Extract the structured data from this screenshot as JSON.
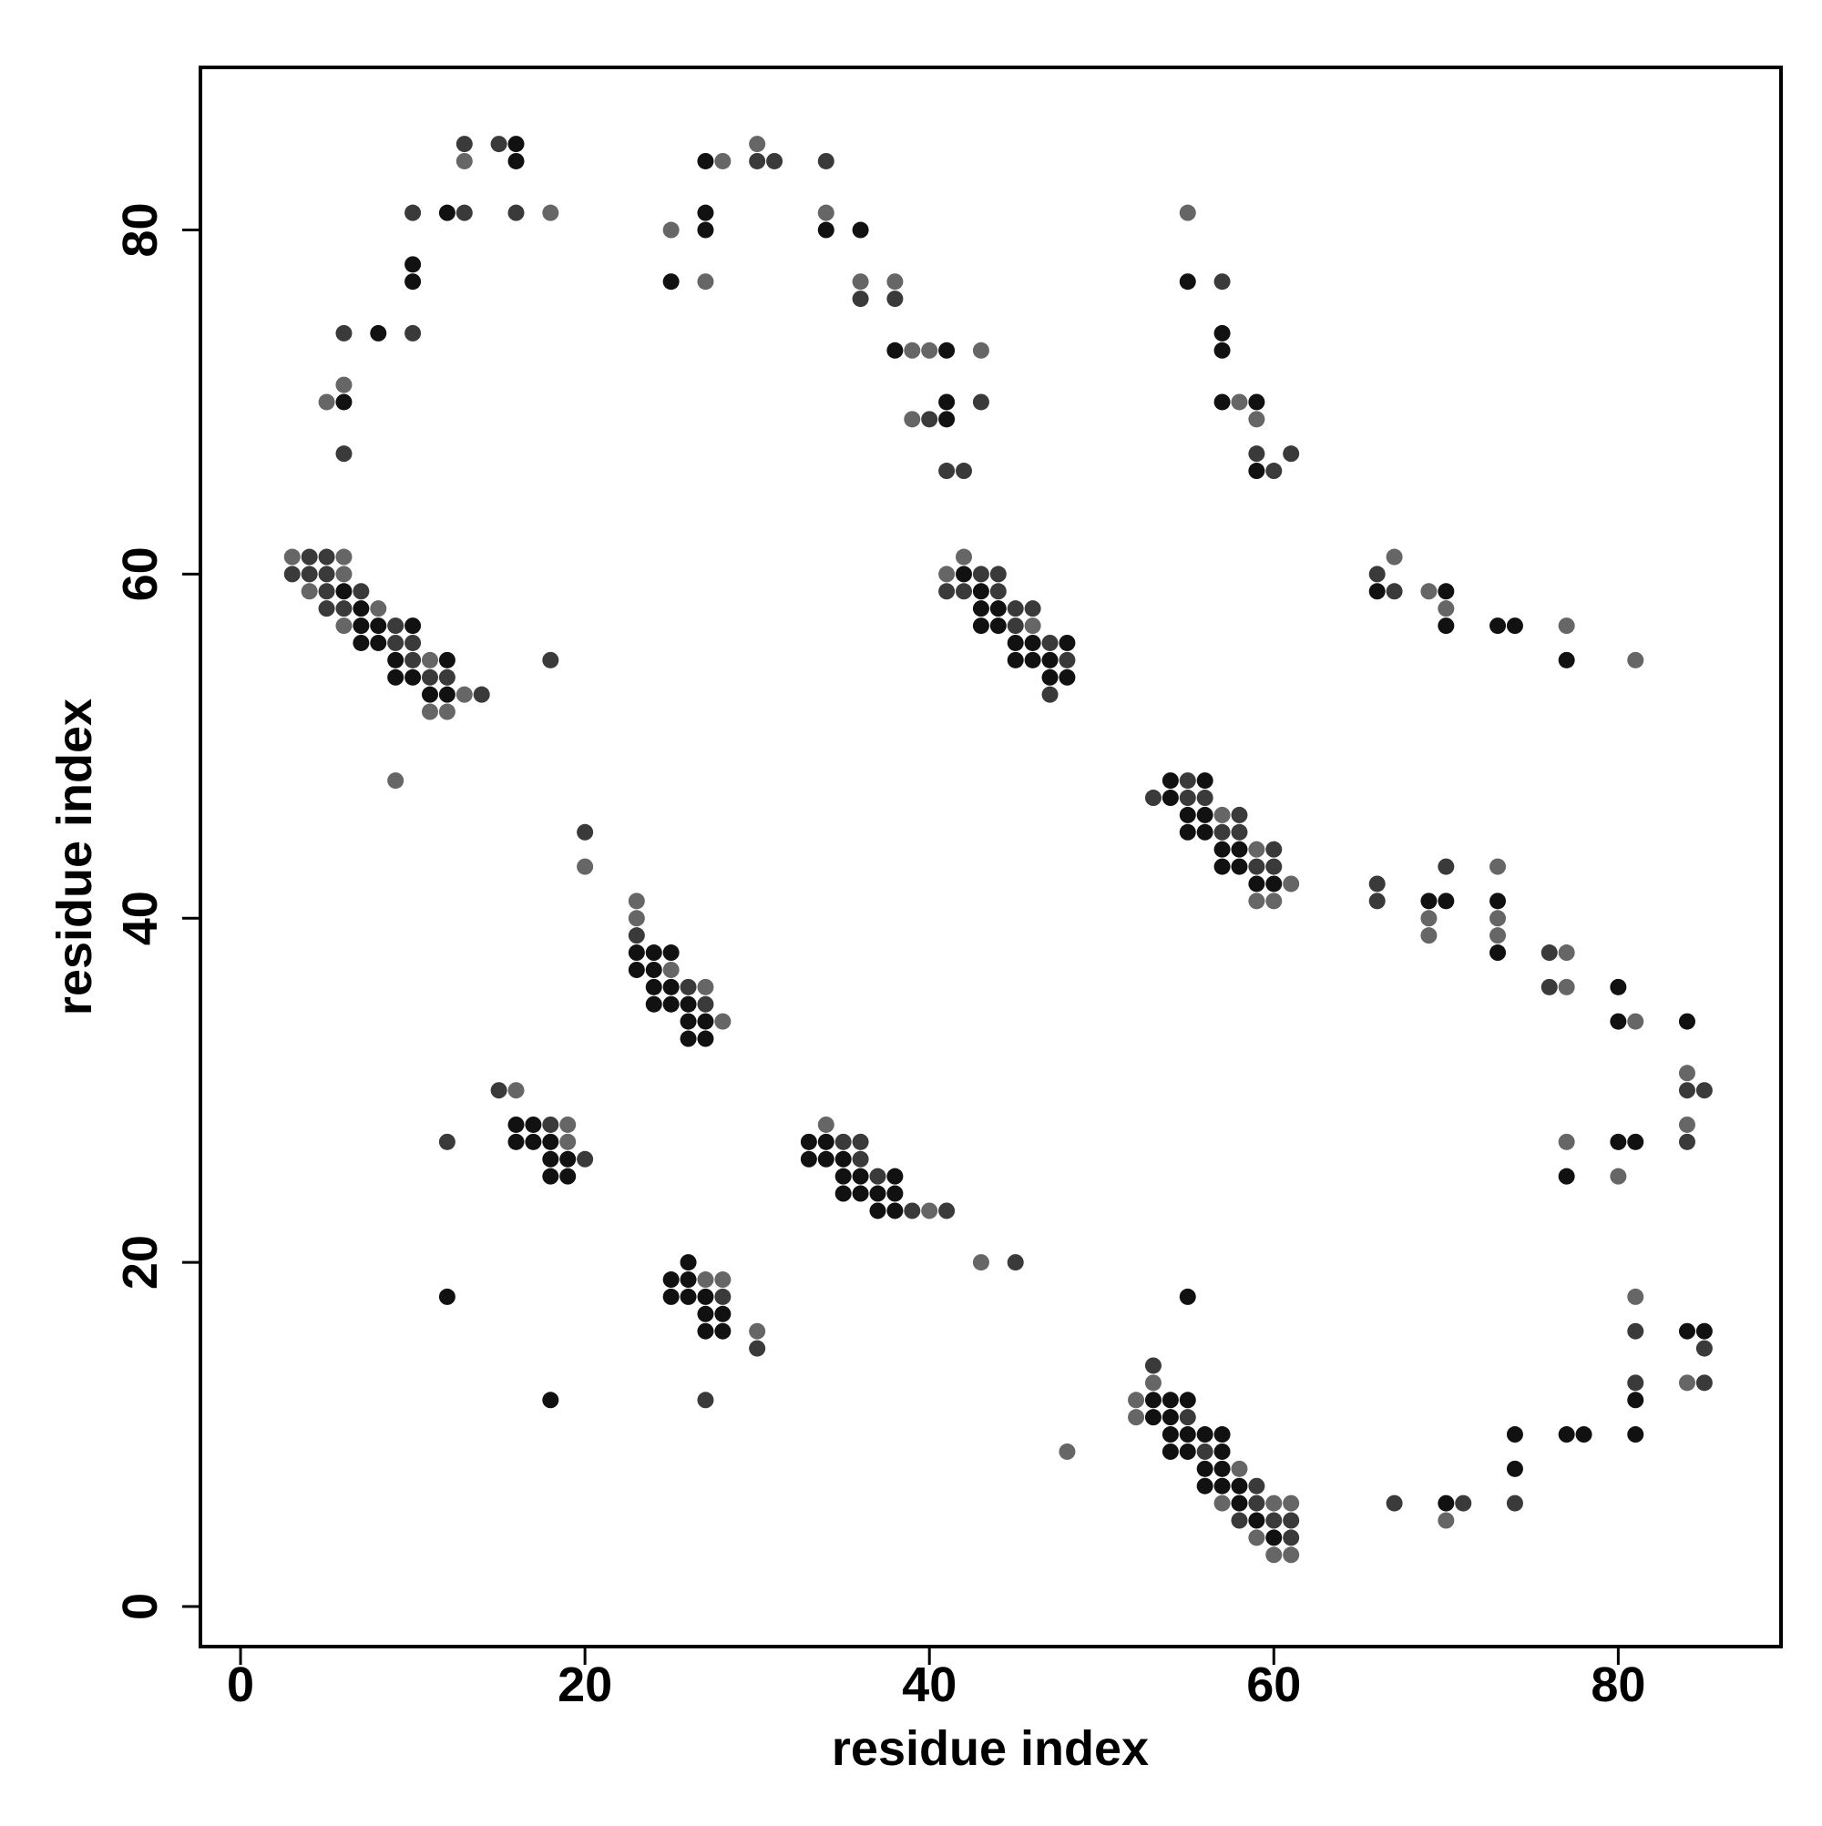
{
  "chart_data": {
    "type": "scatter",
    "x_label": "residue index",
    "y_label": "residue index",
    "xlim": [
      -2.33,
      89.45
    ],
    "ylim": [
      -2.33,
      89.45
    ],
    "xticks": [
      0,
      20,
      40,
      60,
      80
    ],
    "yticks": [
      0,
      20,
      40,
      60,
      80
    ],
    "grid": false,
    "series": [
      {
        "color": "#666666",
        "x": [
          13,
          18,
          6,
          5,
          25,
          28,
          27,
          30,
          34,
          36,
          38,
          39,
          40,
          43,
          39,
          55,
          58,
          59,
          3,
          6,
          6,
          4,
          8,
          6,
          11,
          13,
          11,
          12,
          9,
          42,
          41,
          46,
          67,
          69,
          70,
          77,
          81,
          57,
          59,
          61,
          59,
          60,
          69,
          69,
          73,
          73,
          73,
          77,
          77,
          81,
          84,
          84,
          77,
          80,
          20,
          23,
          23,
          25,
          27,
          28,
          16,
          19,
          19,
          34,
          40,
          43,
          27,
          28,
          30,
          48,
          53,
          52,
          52,
          58,
          57,
          60,
          61,
          59,
          60,
          61,
          70,
          81,
          84
        ],
        "y": [
          84,
          81,
          71,
          70,
          80,
          84,
          77,
          85,
          81,
          77,
          77,
          73,
          73,
          73,
          69,
          81,
          70,
          69,
          61,
          61,
          60,
          59,
          58,
          57,
          55,
          53,
          52,
          52,
          48,
          61,
          60,
          57,
          61,
          59,
          58,
          57,
          55,
          46,
          44,
          42,
          41,
          41,
          40,
          39,
          43,
          40,
          39,
          38,
          36,
          34,
          31,
          28,
          27,
          25,
          43,
          41,
          40,
          37,
          36,
          34,
          30,
          28,
          27,
          28,
          23,
          20,
          19,
          19,
          16,
          9,
          13,
          12,
          11,
          8,
          6,
          6,
          6,
          4,
          3,
          3,
          5,
          18,
          13
        ]
      },
      {
        "color": "#3a3a3a",
        "x": [
          13,
          15,
          16,
          13,
          10,
          10,
          6,
          6,
          30,
          31,
          34,
          36,
          38,
          40,
          43,
          41,
          42,
          57,
          59,
          60,
          61,
          4,
          5,
          3,
          4,
          5,
          5,
          7,
          5,
          6,
          9,
          9,
          10,
          10,
          11,
          12,
          14,
          18,
          43,
          44,
          41,
          42,
          44,
          45,
          46,
          45,
          47,
          48,
          47,
          66,
          67,
          55,
          53,
          55,
          56,
          58,
          57,
          58,
          60,
          59,
          60,
          66,
          66,
          70,
          76,
          76,
          84,
          85,
          84,
          20,
          23,
          26,
          27,
          15,
          12,
          18,
          20,
          35,
          36,
          36,
          37,
          39,
          41,
          45,
          28,
          30,
          27,
          53,
          55,
          56,
          59,
          59,
          58,
          60,
          61,
          61,
          67,
          71,
          74,
          81,
          81,
          85,
          85
        ],
        "y": [
          85,
          85,
          81,
          81,
          81,
          74,
          74,
          67,
          84,
          84,
          84,
          76,
          76,
          69,
          70,
          66,
          66,
          77,
          67,
          66,
          67,
          61,
          61,
          60,
          60,
          60,
          59,
          59,
          58,
          58,
          57,
          56,
          56,
          55,
          54,
          54,
          53,
          55,
          60,
          60,
          59,
          59,
          59,
          58,
          58,
          57,
          56,
          55,
          53,
          60,
          59,
          48,
          47,
          47,
          47,
          46,
          45,
          45,
          44,
          43,
          43,
          42,
          41,
          43,
          38,
          36,
          30,
          30,
          27,
          45,
          39,
          36,
          35,
          30,
          27,
          28,
          26,
          27,
          27,
          26,
          25,
          23,
          23,
          20,
          18,
          15,
          12,
          14,
          11,
          9,
          7,
          6,
          5,
          5,
          5,
          4,
          6,
          6,
          6,
          16,
          13,
          15,
          13
        ]
      },
      {
        "color": "#111111",
        "x": [
          16,
          16,
          12,
          10,
          10,
          8,
          6,
          25,
          27,
          27,
          27,
          34,
          36,
          38,
          41,
          41,
          41,
          55,
          57,
          57,
          57,
          59,
          59,
          6,
          7,
          7,
          8,
          10,
          7,
          8,
          9,
          12,
          9,
          10,
          11,
          12,
          42,
          43,
          43,
          44,
          43,
          44,
          45,
          46,
          48,
          45,
          46,
          47,
          47,
          48,
          66,
          70,
          70,
          73,
          74,
          77,
          54,
          56,
          54,
          55,
          56,
          55,
          56,
          57,
          58,
          57,
          58,
          59,
          60,
          69,
          70,
          73,
          73,
          80,
          80,
          84,
          81,
          80,
          77,
          23,
          24,
          25,
          23,
          24,
          24,
          25,
          24,
          25,
          26,
          26,
          27,
          26,
          27,
          16,
          17,
          16,
          17,
          18,
          18,
          19,
          18,
          19,
          12,
          18,
          33,
          34,
          33,
          34,
          35,
          35,
          36,
          38,
          35,
          36,
          37,
          38,
          37,
          38,
          26,
          25,
          26,
          25,
          26,
          27,
          27,
          28,
          27,
          28,
          55,
          53,
          54,
          55,
          53,
          54,
          54,
          55,
          56,
          57,
          54,
          55,
          57,
          56,
          57,
          56,
          57,
          58,
          58,
          59,
          60,
          70,
          74,
          74,
          77,
          78,
          81,
          81,
          84,
          85
        ],
        "y": [
          85,
          84,
          81,
          78,
          77,
          74,
          70,
          77,
          84,
          81,
          80,
          80,
          80,
          73,
          73,
          69,
          70,
          77,
          74,
          73,
          70,
          70,
          66,
          59,
          58,
          57,
          57,
          57,
          56,
          56,
          55,
          55,
          54,
          54,
          53,
          53,
          60,
          59,
          58,
          58,
          57,
          57,
          56,
          56,
          56,
          55,
          55,
          55,
          54,
          54,
          59,
          59,
          57,
          57,
          57,
          55,
          48,
          48,
          47,
          46,
          46,
          45,
          45,
          44,
          44,
          43,
          43,
          42,
          42,
          41,
          41,
          41,
          38,
          36,
          34,
          34,
          27,
          27,
          25,
          38,
          38,
          38,
          37,
          37,
          36,
          36,
          35,
          35,
          35,
          34,
          34,
          33,
          33,
          28,
          28,
          27,
          27,
          27,
          26,
          26,
          25,
          25,
          18,
          12,
          27,
          27,
          26,
          26,
          26,
          25,
          25,
          25,
          24,
          24,
          24,
          24,
          23,
          23,
          20,
          19,
          19,
          18,
          18,
          18,
          17,
          17,
          16,
          16,
          18,
          12,
          12,
          12,
          11,
          11,
          10,
          10,
          10,
          10,
          9,
          9,
          9,
          8,
          8,
          7,
          7,
          7,
          6,
          5,
          4,
          6,
          10,
          8,
          10,
          10,
          12,
          10,
          16,
          16
        ]
      }
    ]
  }
}
